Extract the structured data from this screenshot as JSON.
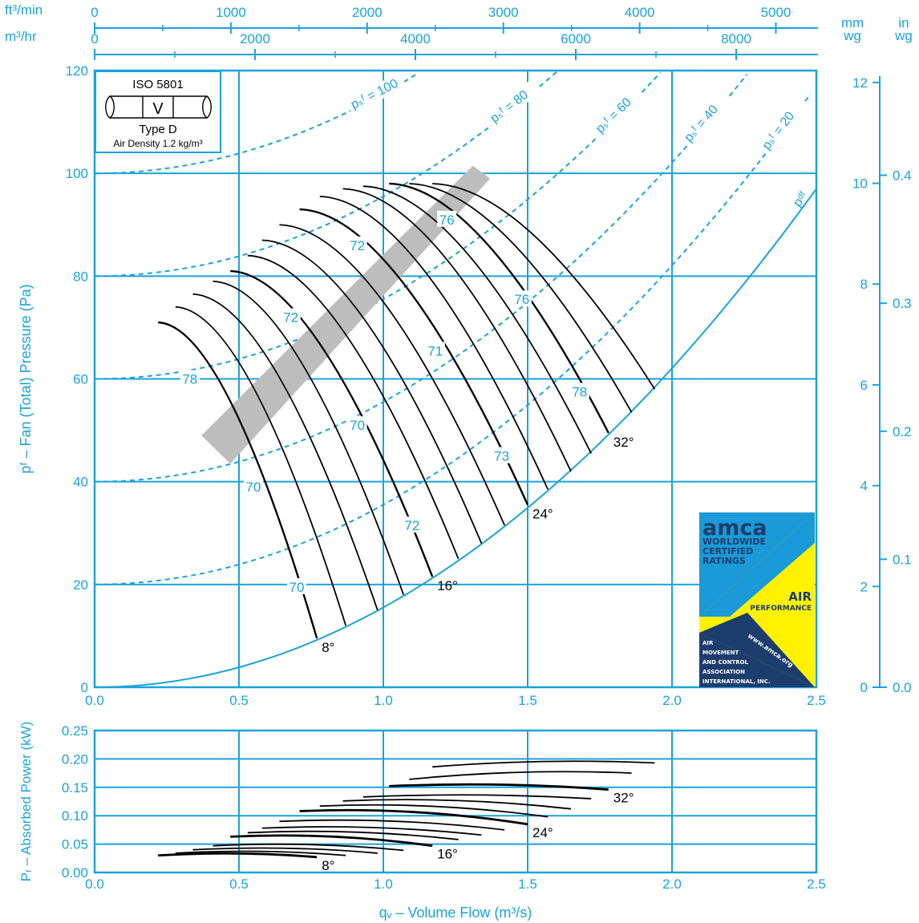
{
  "colors": {
    "accent": "#1aa3d9",
    "curve": "#000000",
    "op_band": "#bdbdbd",
    "badge_blue": "#1a9ad6",
    "badge_yellow": "#fff200",
    "badge_navy": "#1c3d6e"
  },
  "chart_data": [
    {
      "type": "line",
      "xlabel": "qᵥ – Volume Flow (m³/s)",
      "ylabel": "pᶠ – Fan (Total) Pressure (Pa)",
      "xlim": [
        0,
        2.5
      ],
      "ylim": [
        0,
        120
      ],
      "x_ticks": [
        "0.0",
        "0.5",
        "1.0",
        "1.5",
        "2.0",
        "2.5"
      ],
      "y_ticks": [
        "0",
        "20",
        "40",
        "60",
        "80",
        "100",
        "120"
      ],
      "grid": true,
      "top_axes": [
        {
          "unit": "ft³/min",
          "ticks": [
            "0",
            "1000",
            "2000",
            "3000",
            "4000",
            "5000"
          ]
        },
        {
          "unit": "m³/hr",
          "ticks": [
            "0",
            "2000",
            "4000",
            "6000",
            "8000"
          ]
        }
      ],
      "right_axes": [
        {
          "unit": [
            "mm",
            "wg"
          ],
          "ticks": [
            "0",
            "2",
            "4",
            "6",
            "8",
            "10",
            "12"
          ]
        },
        {
          "unit": [
            "in",
            "wg"
          ],
          "ticks": [
            "0.0",
            "0.1",
            "0.2",
            "0.3",
            "0.4"
          ]
        }
      ],
      "legend_box": {
        "standard": "ISO 5801",
        "install": "V",
        "type": "Type D",
        "density": "Air Density 1.2 kg/m³"
      },
      "static_pressure_lines": [
        {
          "label": "= 100",
          "psf": 100
        },
        {
          "label": "= 80",
          "psf": 80
        },
        {
          "label": "= 60",
          "psf": 60
        },
        {
          "label": "= 40",
          "psf": 40
        },
        {
          "label": "= 20",
          "psf": 20
        }
      ],
      "psf_symbol": "pₛᶠ",
      "pdf_label": "pᵈᶠ",
      "pdf_curve_endpoint": [
        2.5,
        97
      ],
      "blade_angles": [
        {
          "label": "8°",
          "x": 0.77,
          "y": 9.5
        },
        {
          "label": "16°",
          "x": 1.17,
          "y": 21.5
        },
        {
          "label": "24°",
          "x": 1.5,
          "y": 35.5
        },
        {
          "label": "32°",
          "x": 1.78,
          "y": 49.5
        }
      ],
      "pressure_curves": [
        {
          "start": [
            0.22,
            71
          ],
          "end": [
            0.77,
            9.5
          ],
          "bold": true
        },
        {
          "start": [
            0.28,
            74
          ],
          "end": [
            0.87,
            12
          ]
        },
        {
          "start": [
            0.34,
            76.5
          ],
          "end": [
            0.98,
            15
          ]
        },
        {
          "start": [
            0.41,
            79
          ],
          "end": [
            1.07,
            18
          ]
        },
        {
          "start": [
            0.47,
            81
          ],
          "end": [
            1.17,
            21.5
          ],
          "bold": true
        },
        {
          "start": [
            0.53,
            84
          ],
          "end": [
            1.26,
            25
          ]
        },
        {
          "start": [
            0.58,
            87
          ],
          "end": [
            1.34,
            28
          ]
        },
        {
          "start": [
            0.64,
            90
          ],
          "end": [
            1.42,
            31.5
          ]
        },
        {
          "start": [
            0.71,
            93
          ],
          "end": [
            1.5,
            35.5
          ],
          "bold": true
        },
        {
          "start": [
            0.78,
            95.5
          ],
          "end": [
            1.57,
            38.5
          ]
        },
        {
          "start": [
            0.86,
            97
          ],
          "end": [
            1.65,
            42
          ]
        },
        {
          "start": [
            0.93,
            97.5
          ],
          "end": [
            1.72,
            45.5
          ]
        },
        {
          "start": [
            1.02,
            98
          ],
          "end": [
            1.78,
            49.5
          ],
          "bold": true
        },
        {
          "start": [
            1.09,
            98
          ],
          "end": [
            1.86,
            53.5
          ]
        },
        {
          "start": [
            1.17,
            98
          ],
          "end": [
            1.94,
            58
          ]
        }
      ],
      "efficiency_labels": [
        {
          "label": "78",
          "x": 0.33,
          "y": 60
        },
        {
          "label": "72",
          "x": 0.68,
          "y": 72
        },
        {
          "label": "70",
          "x": 0.55,
          "y": 39
        },
        {
          "label": "70",
          "x": 0.7,
          "y": 19.5
        },
        {
          "label": "70",
          "x": 0.91,
          "y": 51
        },
        {
          "label": "72",
          "x": 0.91,
          "y": 86
        },
        {
          "label": "76",
          "x": 1.22,
          "y": 91
        },
        {
          "label": "71",
          "x": 1.18,
          "y": 65.5
        },
        {
          "label": "72",
          "x": 1.1,
          "y": 31.5
        },
        {
          "label": "73",
          "x": 1.41,
          "y": 45
        },
        {
          "label": "76",
          "x": 1.48,
          "y": 75.5
        },
        {
          "label": "78",
          "x": 1.68,
          "y": 57.5
        }
      ],
      "operating_band": [
        [
          0.37,
          49
        ],
        [
          1.31,
          101.5
        ],
        [
          1.37,
          99
        ],
        [
          0.47,
          43.5
        ]
      ]
    },
    {
      "type": "line",
      "xlabel": "qᵥ – Volume Flow (m³/s)",
      "ylabel": "Pᵣ – Absorbed Power (kW)",
      "xlim": [
        0,
        2.5
      ],
      "ylim": [
        0,
        0.25
      ],
      "x_ticks": [
        "0.0",
        "0.5",
        "1.0",
        "1.5",
        "2.0",
        "2.5"
      ],
      "y_ticks": [
        "0.00",
        "0.05",
        "0.10",
        "0.15",
        "0.20",
        "0.25"
      ],
      "grid": true,
      "blade_angles": [
        {
          "label": "8°",
          "x": 0.77,
          "y": 0.027
        },
        {
          "label": "16°",
          "x": 1.17,
          "y": 0.047
        },
        {
          "label": "24°",
          "x": 1.5,
          "y": 0.085
        },
        {
          "label": "32°",
          "x": 1.78,
          "y": 0.146
        }
      ],
      "power_curves": [
        {
          "start": [
            0.22,
            0.03
          ],
          "end": [
            0.77,
            0.027
          ],
          "bold": true
        },
        {
          "start": [
            0.28,
            0.034
          ],
          "end": [
            0.87,
            0.03
          ]
        },
        {
          "start": [
            0.34,
            0.04
          ],
          "end": [
            0.98,
            0.034
          ]
        },
        {
          "start": [
            0.41,
            0.047
          ],
          "end": [
            1.07,
            0.039
          ]
        },
        {
          "start": [
            0.47,
            0.063
          ],
          "end": [
            1.17,
            0.047
          ],
          "bold": true
        },
        {
          "start": [
            0.53,
            0.07
          ],
          "end": [
            1.26,
            0.058
          ]
        },
        {
          "start": [
            0.58,
            0.078
          ],
          "end": [
            1.34,
            0.066
          ]
        },
        {
          "start": [
            0.64,
            0.09
          ],
          "end": [
            1.42,
            0.075
          ]
        },
        {
          "start": [
            0.71,
            0.108
          ],
          "end": [
            1.5,
            0.085
          ],
          "bold": true
        },
        {
          "start": [
            0.78,
            0.117
          ],
          "end": [
            1.57,
            0.098
          ]
        },
        {
          "start": [
            0.86,
            0.126
          ],
          "end": [
            1.65,
            0.112
          ]
        },
        {
          "start": [
            0.93,
            0.133
          ],
          "end": [
            1.72,
            0.13
          ]
        },
        {
          "start": [
            1.02,
            0.152
          ],
          "end": [
            1.78,
            0.146
          ],
          "bold": true
        },
        {
          "start": [
            1.09,
            0.164
          ],
          "end": [
            1.86,
            0.175
          ]
        },
        {
          "start": [
            1.17,
            0.186
          ],
          "end": [
            1.94,
            0.193
          ]
        }
      ]
    }
  ],
  "badge": {
    "brand": "amca",
    "line1": "WORLDWIDE",
    "line2": "CERTIFIED",
    "line3": "RATINGS",
    "air": "AIR",
    "performance": "PERFORMANCE",
    "org1": "AIR",
    "org2": "MOVEMENT",
    "org3": "AND CONTROL",
    "org4": "ASSOCIATION",
    "org5": "INTERNATIONAL, INC.",
    "url": "www.amca.org"
  }
}
